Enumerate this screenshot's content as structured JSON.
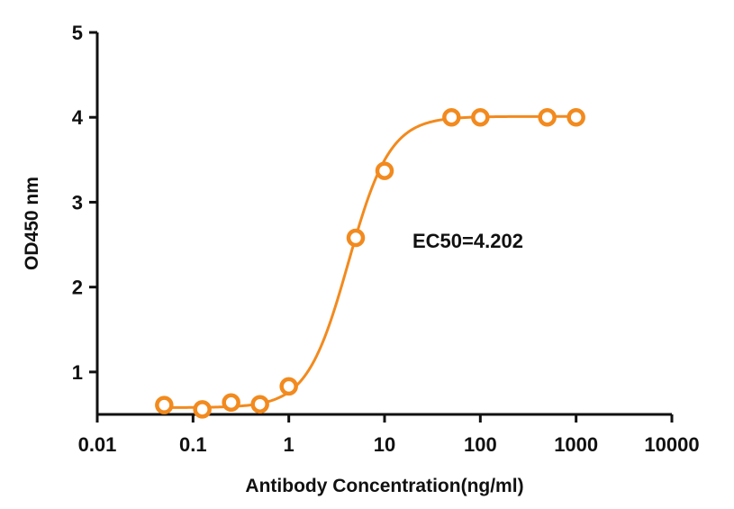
{
  "chart_data": {
    "type": "scatter",
    "title": "",
    "xlabel": "Antibody Concentration(ng/ml)",
    "ylabel": "OD450 nm",
    "xscale": "log",
    "xlim": [
      0.01,
      10000
    ],
    "ylim": [
      0.5,
      5
    ],
    "xticks": [
      0.01,
      0.1,
      1,
      10,
      100,
      1000,
      10000
    ],
    "xtick_labels": [
      "0.01",
      "0.1",
      "1",
      "10",
      "100",
      "1000",
      "10000"
    ],
    "yticks": [
      1,
      2,
      3,
      4,
      5
    ],
    "ytick_labels": [
      "1",
      "2",
      "3",
      "4",
      "5"
    ],
    "grid": false,
    "series_color": "#F28A1E",
    "points": [
      {
        "x": 0.05,
        "y": 0.61
      },
      {
        "x": 0.125,
        "y": 0.56
      },
      {
        "x": 0.25,
        "y": 0.64
      },
      {
        "x": 0.5,
        "y": 0.62
      },
      {
        "x": 1,
        "y": 0.83
      },
      {
        "x": 5,
        "y": 2.58
      },
      {
        "x": 10,
        "y": 3.37
      },
      {
        "x": 50,
        "y": 4.0
      },
      {
        "x": 100,
        "y": 4.0
      },
      {
        "x": 500,
        "y": 4.0
      },
      {
        "x": 1000,
        "y": 4.0
      }
    ],
    "fit": {
      "model": "4PL",
      "bottom": 0.58,
      "top": 4.01,
      "ec50": 4.202,
      "hill": 2.0
    },
    "annotation": "EC50=4.202"
  }
}
